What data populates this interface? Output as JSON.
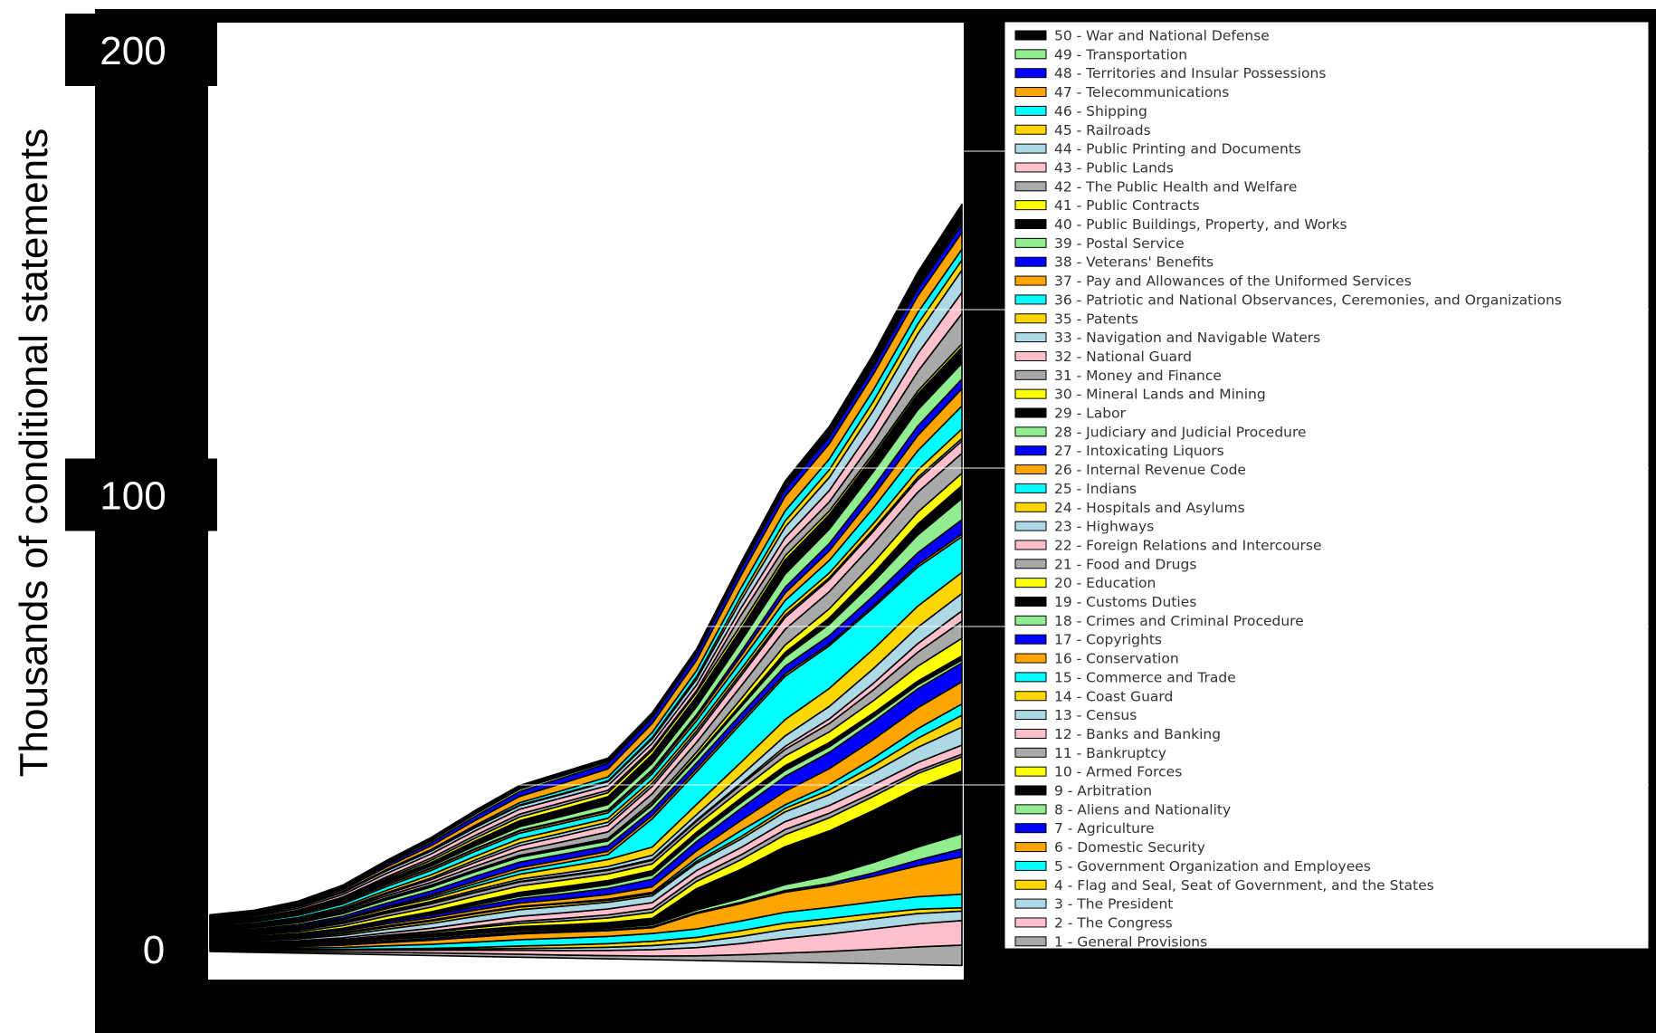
{
  "chart_data": {
    "type": "area",
    "stacked": true,
    "title": "",
    "xlabel": "",
    "ylabel": "Thousands of conditional statements",
    "ylim": [
      -5,
      205
    ],
    "y_ticks": [
      {
        "value": 0,
        "label": "0"
      },
      {
        "value": 100,
        "label": "100"
      },
      {
        "value": 200,
        "label": "200"
      }
    ],
    "x": [
      0,
      1,
      2,
      3,
      4,
      5,
      6,
      7,
      8,
      9,
      10,
      11,
      12,
      13,
      14,
      15,
      16,
      17
    ],
    "totals": [
      7.5,
      8.5,
      10.5,
      14,
      19.5,
      24.5,
      30.5,
      36,
      39,
      42,
      52,
      66,
      85,
      103,
      115,
      131,
      149,
      164
    ],
    "legend_position": "right",
    "series": [
      {
        "name": "1 - General Provisions",
        "color": "#a9a9a9"
      },
      {
        "name": "2 - The Congress",
        "color": "#ffc0cb"
      },
      {
        "name": "3 - The President",
        "color": "#add8e6"
      },
      {
        "name": "4 - Flag and Seal, Seat of Government, and the States",
        "color": "#ffd700"
      },
      {
        "name": "5 - Government Organization and Employees",
        "color": "#00ffff"
      },
      {
        "name": "6 - Domestic Security",
        "color": "#ffa500"
      },
      {
        "name": "7 - Agriculture",
        "color": "#0000ff"
      },
      {
        "name": "8 - Aliens and Nationality",
        "color": "#90ee90"
      },
      {
        "name": "9 - Arbitration",
        "color": "#000000"
      },
      {
        "name": "10 - Armed Forces",
        "color": "#ffff00"
      },
      {
        "name": "11 - Bankruptcy",
        "color": "#a9a9a9"
      },
      {
        "name": "12 - Banks and Banking",
        "color": "#ffc0cb"
      },
      {
        "name": "13 - Census",
        "color": "#add8e6"
      },
      {
        "name": "14 - Coast Guard",
        "color": "#ffd700"
      },
      {
        "name": "15 - Commerce and Trade",
        "color": "#00ffff"
      },
      {
        "name": "16 - Conservation",
        "color": "#ffa500"
      },
      {
        "name": "17 - Copyrights",
        "color": "#0000ff"
      },
      {
        "name": "18 - Crimes and Criminal Procedure",
        "color": "#90ee90"
      },
      {
        "name": "19 - Customs Duties",
        "color": "#000000"
      },
      {
        "name": "20 - Education",
        "color": "#ffff00"
      },
      {
        "name": "21 - Food and Drugs",
        "color": "#a9a9a9"
      },
      {
        "name": "22 - Foreign Relations and Intercourse",
        "color": "#ffc0cb"
      },
      {
        "name": "23 - Highways",
        "color": "#add8e6"
      },
      {
        "name": "24 - Hospitals and Asylums",
        "color": "#ffd700"
      },
      {
        "name": "25 - Indians",
        "color": "#00ffff"
      },
      {
        "name": "26 - Internal Revenue Code",
        "color": "#ffa500"
      },
      {
        "name": "27 - Intoxicating Liquors",
        "color": "#0000ff"
      },
      {
        "name": "28 - Judiciary and Judicial Procedure",
        "color": "#90ee90"
      },
      {
        "name": "29 - Labor",
        "color": "#000000"
      },
      {
        "name": "30 - Mineral Lands and Mining",
        "color": "#ffff00"
      },
      {
        "name": "31 - Money and Finance",
        "color": "#a9a9a9"
      },
      {
        "name": "32 - National Guard",
        "color": "#ffc0cb"
      },
      {
        "name": "33 - Navigation and Navigable Waters",
        "color": "#add8e6"
      },
      {
        "name": "35 - Patents",
        "color": "#ffd700"
      },
      {
        "name": "36 - Patriotic and National Observances, Ceremonies, and Organizations",
        "color": "#00ffff"
      },
      {
        "name": "37 - Pay and Allowances of the Uniformed Services",
        "color": "#ffa500"
      },
      {
        "name": "38 - Veterans' Benefits",
        "color": "#0000ff"
      },
      {
        "name": "39 - Postal Service",
        "color": "#90ee90"
      },
      {
        "name": "40 - Public Buildings, Property, and Works",
        "color": "#000000"
      },
      {
        "name": "41 - Public Contracts",
        "color": "#ffff00"
      },
      {
        "name": "42 - The Public Health and Welfare",
        "color": "#a9a9a9"
      },
      {
        "name": "43 - Public Lands",
        "color": "#ffc0cb"
      },
      {
        "name": "44 - Public Printing and Documents",
        "color": "#add8e6"
      },
      {
        "name": "45 - Railroads",
        "color": "#ffd700"
      },
      {
        "name": "46 - Shipping",
        "color": "#00ffff"
      },
      {
        "name": "47 - Telecommunications",
        "color": "#ffa500"
      },
      {
        "name": "48 - Territories and Insular Possessions",
        "color": "#0000ff"
      },
      {
        "name": "49 - Transportation",
        "color": "#90ee90"
      },
      {
        "name": "50 - War and National Defense",
        "color": "#000000"
      }
    ]
  }
}
